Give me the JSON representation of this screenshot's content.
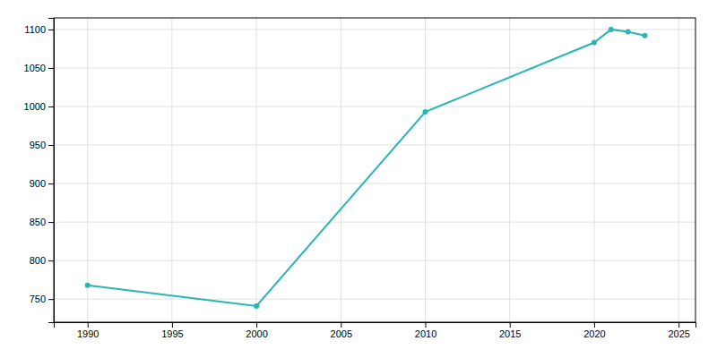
{
  "chart_data": {
    "type": "line",
    "x": [
      1990,
      2000,
      2010,
      2020,
      2021,
      2022,
      2023
    ],
    "values": [
      768,
      741,
      993,
      1083,
      1100,
      1097,
      1092
    ],
    "color": "#2ab5b5",
    "marker": "circle",
    "xlim": [
      1988,
      2026
    ],
    "ylim": [
      720,
      1115
    ],
    "xticks": [
      1990,
      1995,
      2000,
      2005,
      2010,
      2015,
      2020,
      2025
    ],
    "yticks": [
      750,
      800,
      850,
      900,
      950,
      1000,
      1050,
      1100
    ],
    "grid": true
  }
}
